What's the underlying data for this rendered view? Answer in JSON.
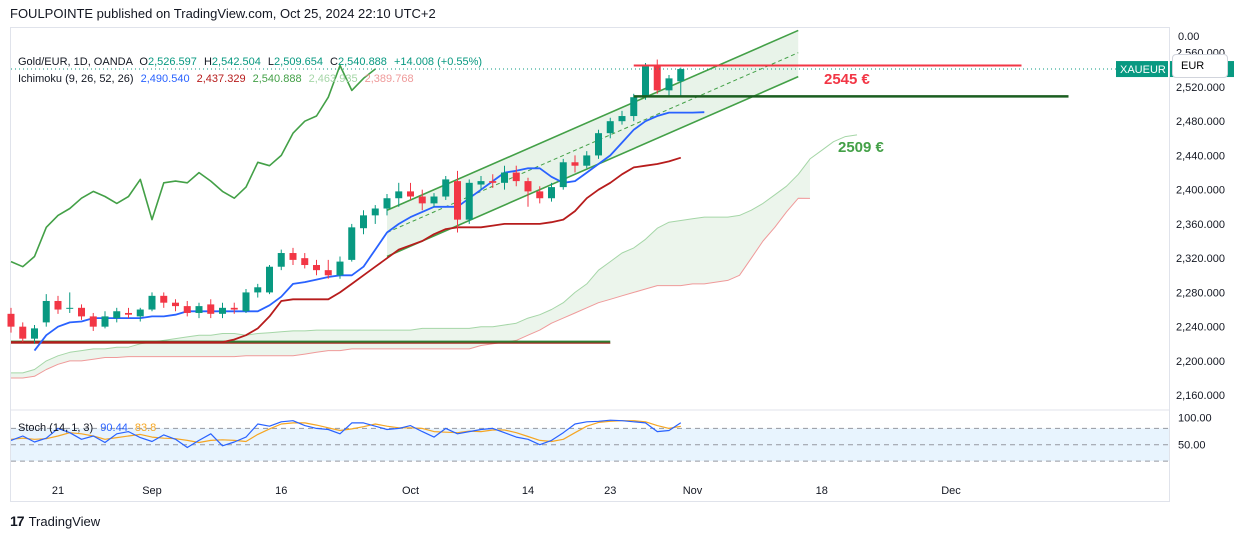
{
  "header": {
    "title": "FOULPOINTE published on TradingView.com, Oct 25, 2024 22:10 UTC+2"
  },
  "legend": {
    "symbol": "Gold/EUR, 1D, OANDA",
    "o_label": "O",
    "open": "2,526.597",
    "h_label": "H",
    "high": "2,542.504",
    "l_label": "L",
    "low": "2,509.654",
    "c_label": "C",
    "close": "2,540.888",
    "change": "+14.008 (+0.55%)",
    "ichimoku": "Ichimoku (9, 26, 52, 26)",
    "ichi_values": [
      "2,490.540",
      "2,437.329",
      "2,540.888",
      "2,463.935",
      "2,389.768"
    ],
    "ichi_colors": [
      "#2962ff",
      "#b71c1c",
      "#43a047",
      "#a5d6a7",
      "#ef9a9a"
    ],
    "stoch": "Stoch (14, 1, 3)",
    "stoch_k": "90.44",
    "stoch_d": "83.8"
  },
  "currency": "EUR",
  "price_axis": {
    "top_label": "0.00",
    "labels": [
      "2,560.000",
      "2,520.000",
      "2,480.000",
      "2,440.000",
      "2,400.000",
      "2,360.000",
      "2,320.000",
      "2,280.000",
      "2,240.000",
      "2,200.000",
      "2,160.000"
    ],
    "values": [
      2560,
      2520,
      2480,
      2440,
      2400,
      2360,
      2320,
      2280,
      2240,
      2200,
      2160
    ]
  },
  "stoch_axis": {
    "labels": [
      "100.00",
      "50.00"
    ],
    "values": [
      100,
      50
    ]
  },
  "time_axis": {
    "labels": [
      "21",
      "Sep",
      "16",
      "Oct",
      "14",
      "23",
      "Nov",
      "18",
      "Dec"
    ],
    "bars": [
      4,
      12,
      23,
      34,
      44,
      51,
      58,
      69,
      80
    ]
  },
  "price_tag": {
    "symbol": "XAUEUR",
    "value": "2,540.888",
    "price": 2540.888
  },
  "annotations": {
    "resistance_label": "2545 €",
    "resistance": 2545,
    "support_label": "2509 €",
    "support": 2509
  },
  "colors": {
    "up": "#089981",
    "down": "#f23645",
    "accent_green": "#2e7d32",
    "red_line": "#f23645"
  },
  "chart_data": {
    "type": "candlestick",
    "title": "Gold/EUR, 1D, OANDA",
    "timeframe": "1D",
    "ylim": [
      2145,
      2590
    ],
    "candles": [
      [
        2255,
        2262,
        2233,
        2240
      ],
      [
        2240,
        2245,
        2222,
        2226
      ],
      [
        2226,
        2242,
        2220,
        2238
      ],
      [
        2245,
        2278,
        2240,
        2270
      ],
      [
        2270,
        2276,
        2255,
        2260
      ],
      [
        2262,
        2280,
        2256,
        2262
      ],
      [
        2262,
        2266,
        2248,
        2252
      ],
      [
        2252,
        2256,
        2235,
        2240
      ],
      [
        2240,
        2258,
        2238,
        2252
      ],
      [
        2250,
        2262,
        2245,
        2258
      ],
      [
        2256,
        2262,
        2250,
        2254
      ],
      [
        2252,
        2262,
        2246,
        2260
      ],
      [
        2260,
        2280,
        2258,
        2276
      ],
      [
        2276,
        2280,
        2262,
        2268
      ],
      [
        2268,
        2272,
        2258,
        2264
      ],
      [
        2264,
        2270,
        2252,
        2256
      ],
      [
        2256,
        2268,
        2250,
        2264
      ],
      [
        2266,
        2272,
        2250,
        2255
      ],
      [
        2255,
        2268,
        2250,
        2262
      ],
      [
        2262,
        2268,
        2255,
        2260
      ],
      [
        2258,
        2284,
        2256,
        2280
      ],
      [
        2280,
        2290,
        2274,
        2286
      ],
      [
        2280,
        2312,
        2278,
        2310
      ],
      [
        2310,
        2330,
        2306,
        2326
      ],
      [
        2326,
        2332,
        2312,
        2318
      ],
      [
        2320,
        2326,
        2308,
        2312
      ],
      [
        2312,
        2318,
        2300,
        2306
      ],
      [
        2306,
        2318,
        2296,
        2300
      ],
      [
        2300,
        2322,
        2296,
        2316
      ],
      [
        2318,
        2360,
        2316,
        2356
      ],
      [
        2355,
        2376,
        2348,
        2370
      ],
      [
        2370,
        2382,
        2360,
        2378
      ],
      [
        2378,
        2395,
        2370,
        2390
      ],
      [
        2390,
        2408,
        2380,
        2398
      ],
      [
        2398,
        2408,
        2388,
        2392
      ],
      [
        2392,
        2400,
        2376,
        2384
      ],
      [
        2384,
        2396,
        2380,
        2392
      ],
      [
        2392,
        2416,
        2388,
        2412
      ],
      [
        2410,
        2422,
        2350,
        2365
      ],
      [
        2365,
        2412,
        2360,
        2408
      ],
      [
        2406,
        2416,
        2400,
        2410
      ],
      [
        2410,
        2418,
        2402,
        2408
      ],
      [
        2408,
        2428,
        2400,
        2420
      ],
      [
        2420,
        2428,
        2404,
        2410
      ],
      [
        2410,
        2414,
        2380,
        2398
      ],
      [
        2398,
        2404,
        2384,
        2390
      ],
      [
        2390,
        2408,
        2386,
        2403
      ],
      [
        2403,
        2436,
        2400,
        2432
      ],
      [
        2432,
        2440,
        2420,
        2428
      ],
      [
        2428,
        2445,
        2425,
        2440
      ],
      [
        2440,
        2470,
        2436,
        2466
      ],
      [
        2466,
        2484,
        2460,
        2480
      ],
      [
        2480,
        2492,
        2476,
        2486
      ],
      [
        2486,
        2512,
        2480,
        2508
      ],
      [
        2508,
        2548,
        2505,
        2545
      ],
      [
        2545,
        2552,
        2512,
        2516
      ],
      [
        2516,
        2534,
        2510,
        2530
      ],
      [
        2526.597,
        2542.504,
        2509.654,
        2540.888
      ]
    ],
    "tenkan": {
      "name": "Tenkan",
      "start_bar": 2,
      "values": [
        2212,
        2230,
        2240,
        2245,
        2246,
        2250,
        2250,
        2250,
        2250,
        2250,
        2252,
        2252,
        2254,
        2258,
        2258,
        2258,
        2258,
        2258,
        2258,
        2258,
        2265,
        2275,
        2290,
        2292,
        2295,
        2298,
        2300,
        2300,
        2310,
        2330,
        2350,
        2360,
        2368,
        2374,
        2380,
        2380,
        2380,
        2390,
        2400,
        2410,
        2420,
        2422,
        2425,
        2425,
        2415,
        2408,
        2410,
        2420,
        2430,
        2440,
        2455,
        2470,
        2480,
        2486,
        2490,
        2490,
        2490,
        2490.54
      ]
    },
    "kijun": {
      "name": "Kijun",
      "start_bar": 0,
      "values": [
        2222,
        2222,
        2222,
        2222,
        2222,
        2222,
        2222,
        2222,
        2222,
        2222,
        2222,
        2222,
        2222,
        2222,
        2222,
        2222,
        2222,
        2222,
        2222,
        2225,
        2230,
        2238,
        2252,
        2270,
        2272,
        2272,
        2272,
        2272,
        2280,
        2290,
        2300,
        2310,
        2320,
        2330,
        2335,
        2340,
        2348,
        2354,
        2356,
        2356,
        2356,
        2358,
        2360,
        2360,
        2360,
        2360,
        2362,
        2365,
        2375,
        2390,
        2400,
        2408,
        2418,
        2426,
        2428,
        2430,
        2433,
        2437.329
      ]
    },
    "chikou": {
      "name": "Chikou",
      "start_bar": 0,
      "values": [
        2316,
        2310,
        2322,
        2356,
        2370,
        2378,
        2390,
        2398,
        2392,
        2384,
        2392,
        2412,
        2365,
        2408,
        2410,
        2408,
        2420,
        2410,
        2398,
        2390,
        2403,
        2432,
        2428,
        2440,
        2466,
        2480,
        2486,
        2508,
        2545,
        2516,
        2530,
        2540.888
      ]
    },
    "senkou_a": {
      "name": "Senkou A",
      "start_bar": 0,
      "values": [
        2186,
        2186,
        2190,
        2200,
        2206,
        2210,
        2212,
        2214,
        2214,
        2216,
        2216,
        2220,
        2222,
        2224,
        2226,
        2228,
        2230,
        2230,
        2232,
        2232,
        2230,
        2232,
        2233,
        2234,
        2235,
        2235,
        2236,
        2236,
        2236,
        2236,
        2236,
        2236,
        2236,
        2236,
        2236,
        2238,
        2238,
        2238,
        2238,
        2238,
        2240,
        2240,
        2242,
        2244,
        2250,
        2254,
        2260,
        2268,
        2280,
        2290,
        2306,
        2316,
        2326,
        2332,
        2342,
        2355,
        2362,
        2364,
        2366,
        2368,
        2368,
        2368,
        2370,
        2376,
        2384,
        2394,
        2404,
        2418,
        2436,
        2446,
        2456,
        2462,
        2463.935
      ]
    },
    "senkou_b": {
      "name": "Senkou B",
      "start_bar": 0,
      "values": [
        2180,
        2180,
        2182,
        2190,
        2196,
        2200,
        2200,
        2202,
        2204,
        2204,
        2205,
        2205,
        2205,
        2205,
        2205,
        2205,
        2205,
        2205,
        2205,
        2205,
        2206,
        2206,
        2206,
        2206,
        2206,
        2208,
        2210,
        2212,
        2212,
        2214,
        2214,
        2214,
        2214,
        2214,
        2214,
        2214,
        2214,
        2214,
        2214,
        2214,
        2218,
        2220,
        2222,
        2224,
        2230,
        2236,
        2244,
        2250,
        2256,
        2262,
        2268,
        2272,
        2276,
        2280,
        2284,
        2288,
        2288,
        2288,
        2290,
        2290,
        2292,
        2294,
        2300,
        2320,
        2340,
        2356,
        2374,
        2390,
        2389.768
      ]
    },
    "channel": {
      "upper": [
        [
          32,
          2376
        ],
        [
          67,
          2586
        ]
      ],
      "middle": [
        [
          32,
          2350
        ],
        [
          67,
          2560
        ]
      ],
      "lower": [
        [
          32,
          2322
        ],
        [
          67,
          2532
        ]
      ]
    },
    "resistance_line": {
      "value": 2545,
      "from_bar": 53,
      "to_bar": 86
    },
    "support_line": {
      "value": 2509,
      "from_bar": 53,
      "to_bar": 90
    },
    "base_line": {
      "value": 2222,
      "from_bar": 0,
      "to_bar": 51
    },
    "stoch_k": {
      "name": "%K",
      "start_bar": 0,
      "values": [
        58,
        66,
        55,
        62,
        80,
        72,
        60,
        66,
        54,
        70,
        74,
        63,
        56,
        68,
        60,
        45,
        58,
        70,
        48,
        55,
        64,
        88,
        84,
        92,
        94,
        85,
        80,
        78,
        70,
        90,
        90,
        84,
        78,
        80,
        85,
        74,
        64,
        80,
        70,
        74,
        78,
        80,
        72,
        64,
        60,
        50,
        58,
        72,
        88,
        92,
        93,
        95,
        94,
        92,
        90,
        74,
        76,
        90.44
      ]
    },
    "stoch_d": {
      "name": "%D",
      "start_bar": 0,
      "values": [
        60,
        62,
        60,
        61,
        66,
        72,
        70,
        66,
        60,
        63,
        66,
        69,
        64,
        62,
        61,
        58,
        54,
        58,
        59,
        58,
        56,
        69,
        79,
        88,
        90,
        90,
        86,
        81,
        76,
        79,
        83,
        88,
        84,
        81,
        81,
        80,
        74,
        73,
        72,
        75,
        74,
        77,
        77,
        72,
        65,
        58,
        56,
        60,
        72,
        84,
        91,
        93,
        94,
        94,
        92,
        85,
        80,
        83.8
      ]
    },
    "stoch_ylim": [
      0,
      110
    ],
    "stoch_bands": [
      80,
      50,
      20
    ]
  }
}
